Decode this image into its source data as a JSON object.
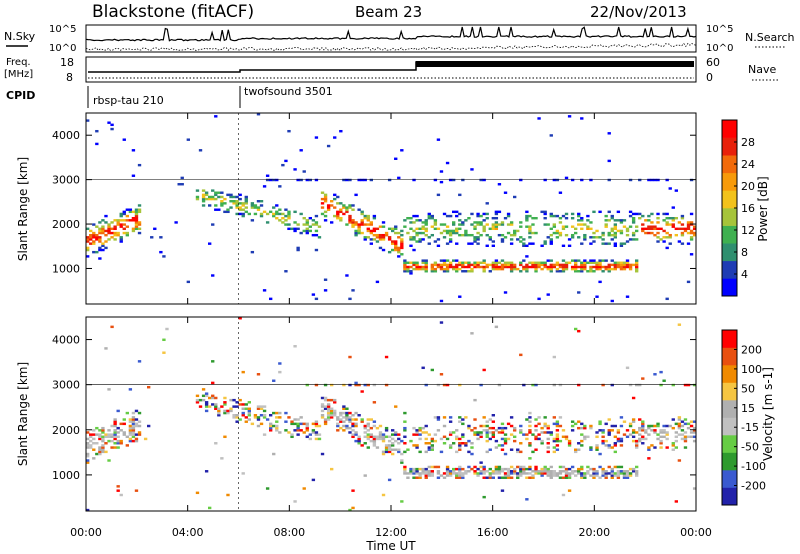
{
  "header": {
    "station": "Blackstone (fitACF)",
    "beam": "Beam 23",
    "date": "22/Nov/2013"
  },
  "summary": {
    "nsky_label": "N.Sky",
    "nsearch_label": "N.Search",
    "freq_label_1": "Freq.",
    "freq_label_2": "[MHz]",
    "nave_label": "Nave",
    "cpid_label": "CPID",
    "noise_ticks": [
      "10^5",
      "10^0"
    ],
    "freq_ticks": [
      "18",
      "8"
    ],
    "nave_ticks": [
      "60",
      "0"
    ],
    "cpid_segments": [
      {
        "name": "rbsp-tau 210",
        "start_hour": 0
      },
      {
        "name": "twofsound 3501",
        "start_hour": 6
      }
    ]
  },
  "colors": {
    "power_scale": [
      "#0000ff",
      "#1e3cb4",
      "#2f8f6f",
      "#3fb050",
      "#a6c43a",
      "#f2c21b",
      "#f79a0a",
      "#f26a0a",
      "#e8200a",
      "#ff0000"
    ],
    "velocity_scale": [
      "#2222aa",
      "#3a5ad0",
      "#2e9a2e",
      "#66cc44",
      "#c0c0c0",
      "#b0b0b0",
      "#f5c542",
      "#f08a00",
      "#e85010",
      "#ff0000"
    ]
  },
  "chart_data": [
    {
      "type": "heatmap",
      "title": "Power",
      "ylabel": "Slant Range [km]",
      "xlabel": "Time UT",
      "xlim": [
        0,
        24
      ],
      "ylim": [
        200,
        4500
      ],
      "x_ticks": [
        "00:00",
        "04:00",
        "08:00",
        "12:00",
        "16:00",
        "20:00",
        "00:00"
      ],
      "y_ticks": [
        1000,
        2000,
        3000,
        4000
      ],
      "colorbar_label": "Power [dB]",
      "colorbar_ticks": [
        4,
        8,
        12,
        16,
        20,
        24,
        28
      ]
    },
    {
      "type": "heatmap",
      "title": "Velocity",
      "ylabel": "Slant Range [km]",
      "xlabel": "Time UT",
      "xlim": [
        0,
        24
      ],
      "ylim": [
        200,
        4500
      ],
      "x_ticks": [
        "00:00",
        "04:00",
        "08:00",
        "12:00",
        "16:00",
        "20:00",
        "00:00"
      ],
      "y_ticks": [
        1000,
        2000,
        3000,
        4000
      ],
      "colorbar_label": "Velocity [m s-1]",
      "colorbar_ticks": [
        200,
        100,
        50,
        15,
        -15,
        -50,
        -100,
        -200
      ]
    }
  ]
}
